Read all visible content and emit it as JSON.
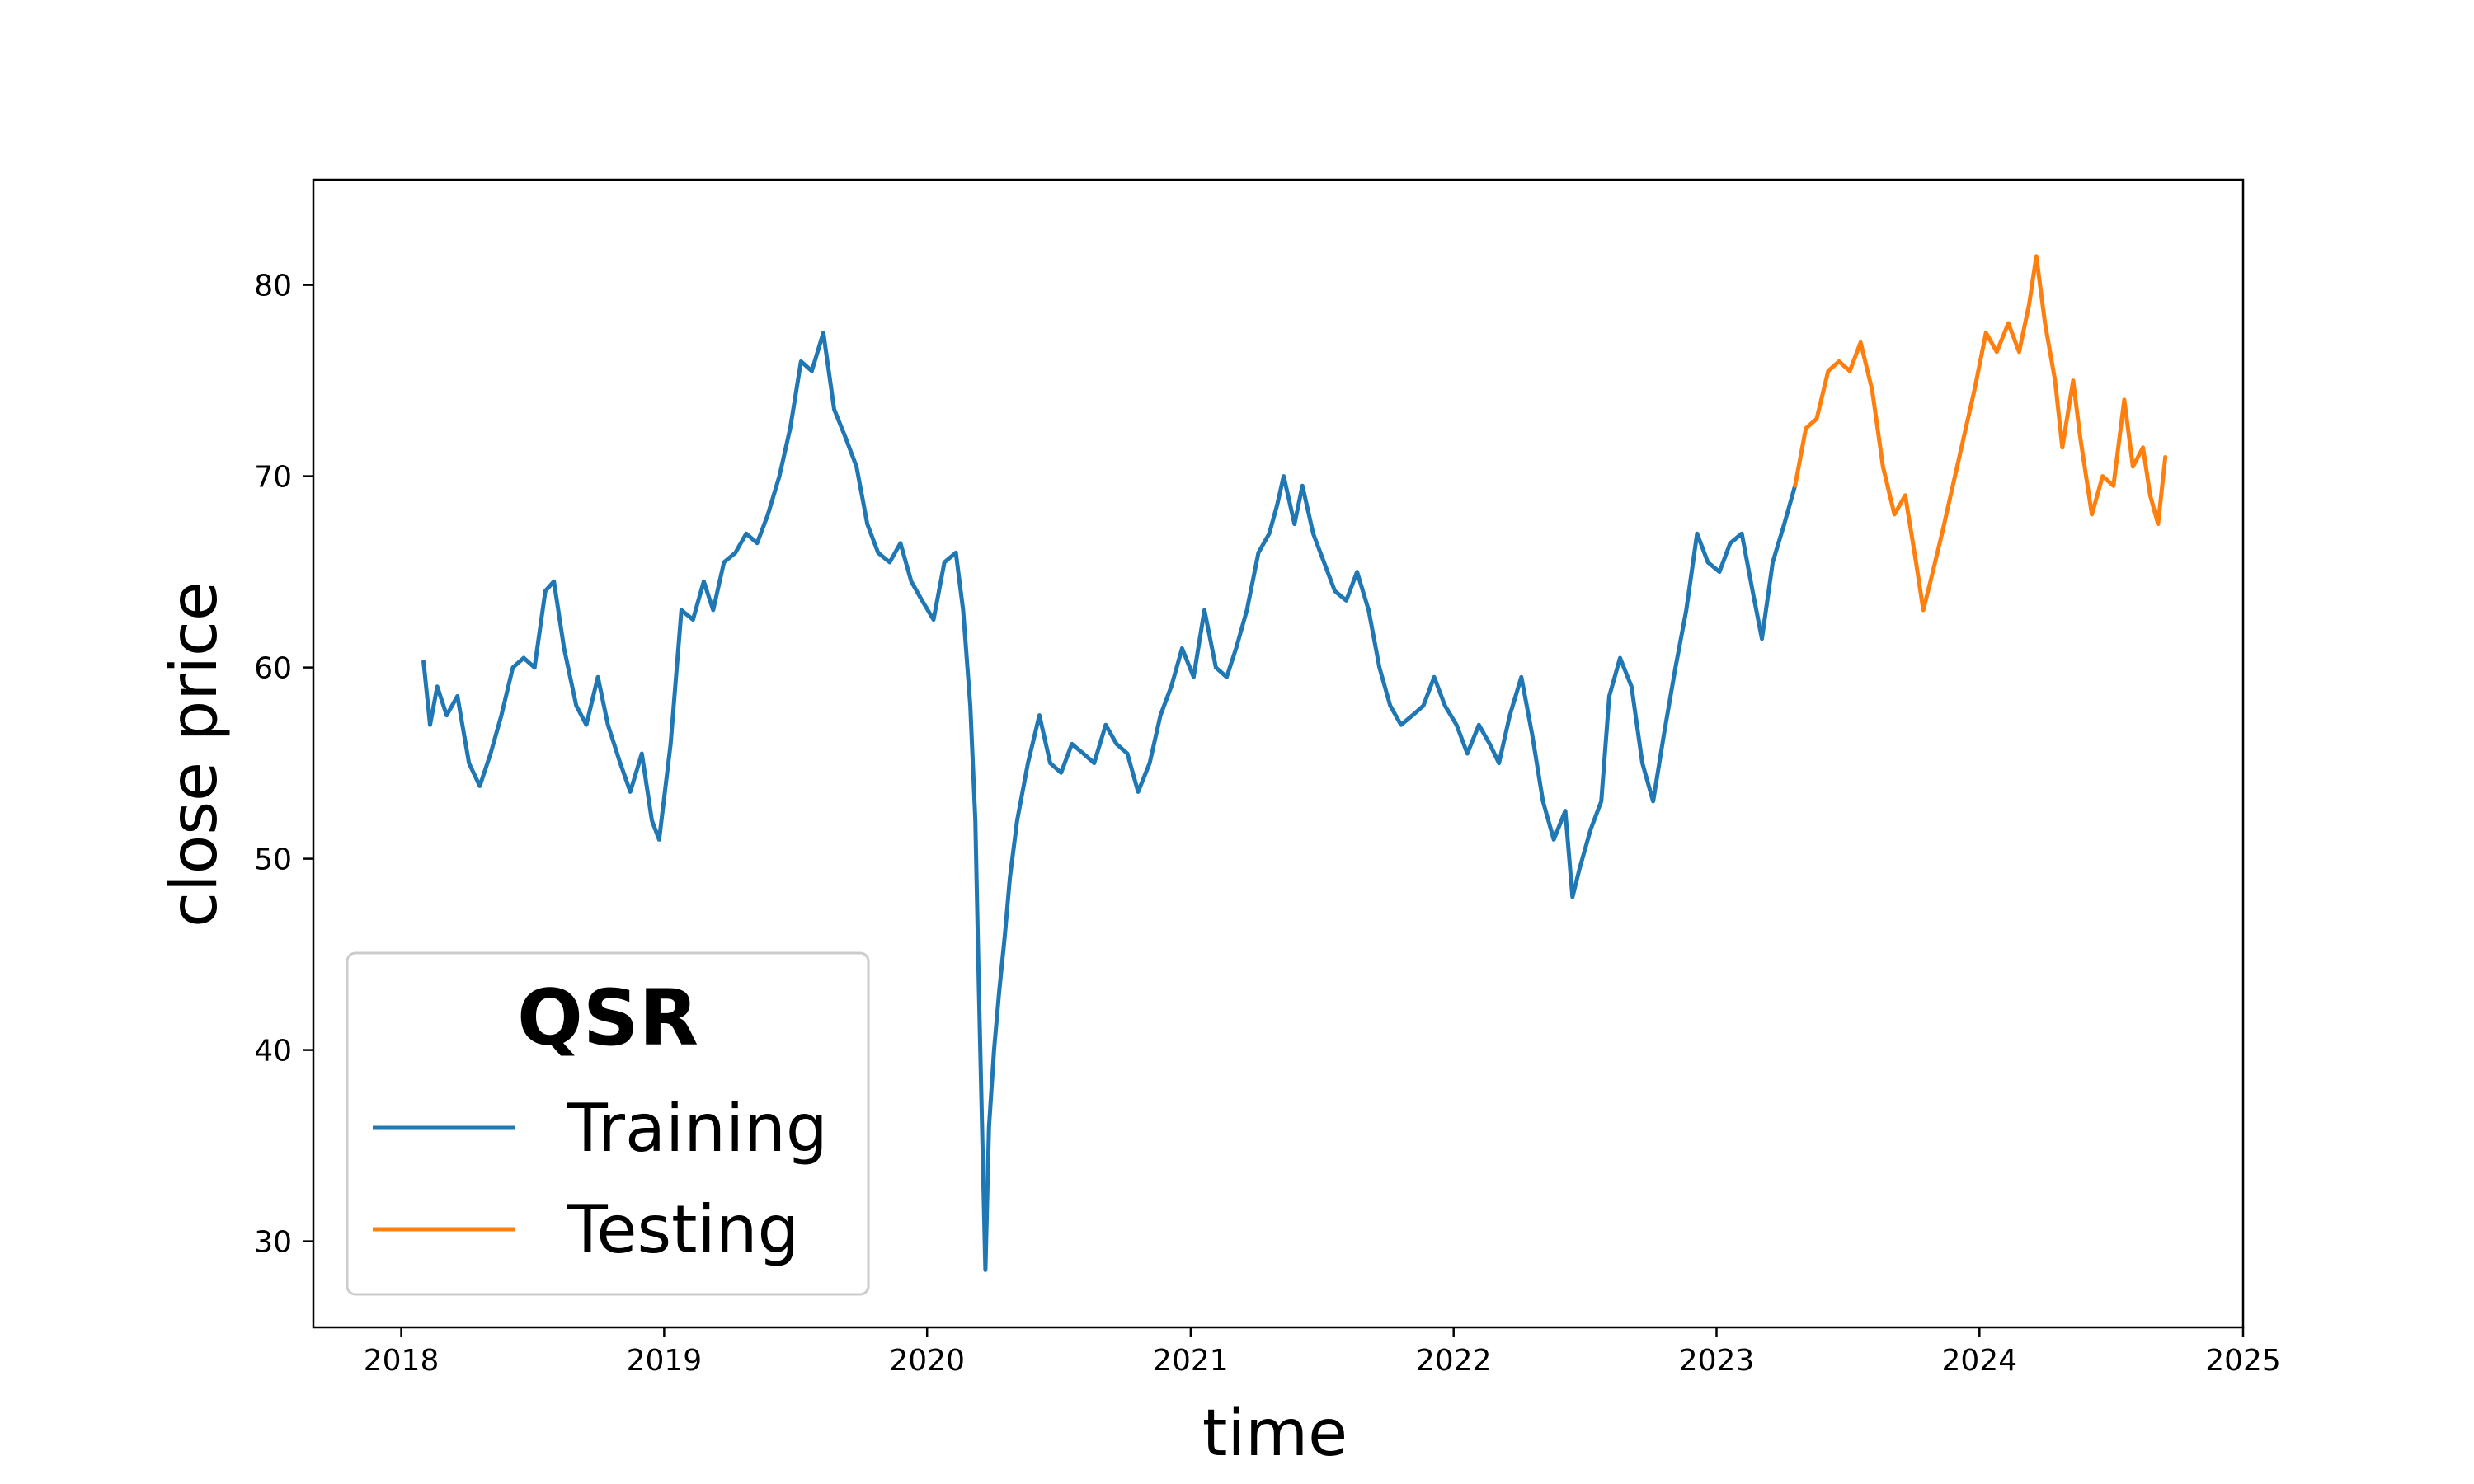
{
  "chart_data": {
    "type": "line",
    "xlabel": "time",
    "ylabel": "close price",
    "xlim": [
      "2017-09-01",
      "2025-01-01"
    ],
    "ylim": [
      25.5,
      85.5
    ],
    "x_ticks": [
      "2018",
      "2019",
      "2020",
      "2021",
      "2022",
      "2023",
      "2024",
      "2025"
    ],
    "y_ticks": [
      30,
      40,
      50,
      60,
      70,
      80
    ],
    "grid": false,
    "legend": {
      "title": "QSR",
      "position": "lower-left"
    },
    "series": [
      {
        "name": "Training",
        "color": "#1f77b4",
        "points": [
          [
            "2018-02-01",
            60.3
          ],
          [
            "2018-02-10",
            57.0
          ],
          [
            "2018-02-20",
            59.0
          ],
          [
            "2018-03-05",
            57.5
          ],
          [
            "2018-03-20",
            58.5
          ],
          [
            "2018-04-05",
            55.0
          ],
          [
            "2018-04-20",
            53.8
          ],
          [
            "2018-05-05",
            55.5
          ],
          [
            "2018-05-20",
            57.5
          ],
          [
            "2018-06-05",
            60.0
          ],
          [
            "2018-06-20",
            60.5
          ],
          [
            "2018-07-05",
            60.0
          ],
          [
            "2018-07-20",
            64.0
          ],
          [
            "2018-08-01",
            64.5
          ],
          [
            "2018-08-15",
            61.0
          ],
          [
            "2018-09-01",
            58.0
          ],
          [
            "2018-09-15",
            57.0
          ],
          [
            "2018-10-01",
            59.5
          ],
          [
            "2018-10-15",
            57.0
          ],
          [
            "2018-11-01",
            55.0
          ],
          [
            "2018-11-15",
            53.5
          ],
          [
            "2018-12-01",
            55.5
          ],
          [
            "2018-12-15",
            52.0
          ],
          [
            "2018-12-25",
            51.0
          ],
          [
            "2019-01-10",
            56.0
          ],
          [
            "2019-01-25",
            63.0
          ],
          [
            "2019-02-10",
            62.5
          ],
          [
            "2019-02-25",
            64.5
          ],
          [
            "2019-03-10",
            63.0
          ],
          [
            "2019-03-25",
            65.5
          ],
          [
            "2019-04-10",
            66.0
          ],
          [
            "2019-04-25",
            67.0
          ],
          [
            "2019-05-10",
            66.5
          ],
          [
            "2019-05-25",
            68.0
          ],
          [
            "2019-06-10",
            70.0
          ],
          [
            "2019-06-25",
            72.5
          ],
          [
            "2019-07-10",
            76.0
          ],
          [
            "2019-07-25",
            75.5
          ],
          [
            "2019-08-10",
            77.5
          ],
          [
            "2019-08-25",
            73.5
          ],
          [
            "2019-09-10",
            72.0
          ],
          [
            "2019-09-25",
            70.5
          ],
          [
            "2019-10-10",
            67.5
          ],
          [
            "2019-10-25",
            66.0
          ],
          [
            "2019-11-10",
            65.5
          ],
          [
            "2019-11-25",
            66.5
          ],
          [
            "2019-12-10",
            64.5
          ],
          [
            "2019-12-25",
            63.5
          ],
          [
            "2020-01-10",
            62.5
          ],
          [
            "2020-01-25",
            65.5
          ],
          [
            "2020-02-10",
            66.0
          ],
          [
            "2020-02-20",
            63.0
          ],
          [
            "2020-03-01",
            58.0
          ],
          [
            "2020-03-08",
            52.0
          ],
          [
            "2020-03-13",
            43.0
          ],
          [
            "2020-03-18",
            35.0
          ],
          [
            "2020-03-22",
            28.5
          ],
          [
            "2020-03-27",
            36.0
          ],
          [
            "2020-04-03",
            40.0
          ],
          [
            "2020-04-10",
            43.0
          ],
          [
            "2020-04-18",
            46.0
          ],
          [
            "2020-04-25",
            49.0
          ],
          [
            "2020-05-05",
            52.0
          ],
          [
            "2020-05-20",
            55.0
          ],
          [
            "2020-06-05",
            57.5
          ],
          [
            "2020-06-20",
            55.0
          ],
          [
            "2020-07-05",
            54.5
          ],
          [
            "2020-07-20",
            56.0
          ],
          [
            "2020-08-05",
            55.5
          ],
          [
            "2020-08-20",
            55.0
          ],
          [
            "2020-09-05",
            57.0
          ],
          [
            "2020-09-20",
            56.0
          ],
          [
            "2020-10-05",
            55.5
          ],
          [
            "2020-10-20",
            53.5
          ],
          [
            "2020-11-05",
            55.0
          ],
          [
            "2020-11-20",
            57.5
          ],
          [
            "2020-12-05",
            59.0
          ],
          [
            "2020-12-20",
            61.0
          ],
          [
            "2021-01-05",
            59.5
          ],
          [
            "2021-01-20",
            63.0
          ],
          [
            "2021-02-05",
            60.0
          ],
          [
            "2021-02-20",
            59.5
          ],
          [
            "2021-03-05",
            61.0
          ],
          [
            "2021-03-20",
            63.0
          ],
          [
            "2021-04-05",
            66.0
          ],
          [
            "2021-04-20",
            67.0
          ],
          [
            "2021-05-01",
            68.5
          ],
          [
            "2021-05-10",
            70.0
          ],
          [
            "2021-05-25",
            67.5
          ],
          [
            "2021-06-05",
            69.5
          ],
          [
            "2021-06-20",
            67.0
          ],
          [
            "2021-07-05",
            65.5
          ],
          [
            "2021-07-20",
            64.0
          ],
          [
            "2021-08-05",
            63.5
          ],
          [
            "2021-08-20",
            65.0
          ],
          [
            "2021-09-05",
            63.0
          ],
          [
            "2021-09-20",
            60.0
          ],
          [
            "2021-10-05",
            58.0
          ],
          [
            "2021-10-20",
            57.0
          ],
          [
            "2021-11-05",
            57.5
          ],
          [
            "2021-11-20",
            58.0
          ],
          [
            "2021-12-05",
            59.5
          ],
          [
            "2021-12-20",
            58.0
          ],
          [
            "2022-01-05",
            57.0
          ],
          [
            "2022-01-20",
            55.5
          ],
          [
            "2022-02-05",
            57.0
          ],
          [
            "2022-02-20",
            56.0
          ],
          [
            "2022-03-05",
            55.0
          ],
          [
            "2022-03-20",
            57.5
          ],
          [
            "2022-04-05",
            59.5
          ],
          [
            "2022-04-20",
            56.5
          ],
          [
            "2022-05-05",
            53.0
          ],
          [
            "2022-05-20",
            51.0
          ],
          [
            "2022-06-05",
            52.5
          ],
          [
            "2022-06-15",
            48.0
          ],
          [
            "2022-06-25",
            49.5
          ],
          [
            "2022-07-10",
            51.5
          ],
          [
            "2022-07-25",
            53.0
          ],
          [
            "2022-08-05",
            58.5
          ],
          [
            "2022-08-20",
            60.5
          ],
          [
            "2022-09-05",
            59.0
          ],
          [
            "2022-09-20",
            55.0
          ],
          [
            "2022-10-05",
            53.0
          ],
          [
            "2022-10-20",
            56.5
          ],
          [
            "2022-11-05",
            60.0
          ],
          [
            "2022-11-20",
            63.0
          ],
          [
            "2022-12-05",
            67.0
          ],
          [
            "2022-12-20",
            65.5
          ],
          [
            "2023-01-05",
            65.0
          ],
          [
            "2023-01-20",
            66.5
          ],
          [
            "2023-02-05",
            67.0
          ],
          [
            "2023-02-20",
            64.0
          ],
          [
            "2023-03-05",
            61.5
          ],
          [
            "2023-03-20",
            65.5
          ],
          [
            "2023-04-05",
            67.5
          ],
          [
            "2023-04-20",
            69.5
          ]
        ]
      },
      {
        "name": "Testing",
        "color": "#ff7f0e",
        "points": [
          [
            "2023-04-20",
            69.5
          ],
          [
            "2023-05-05",
            72.5
          ],
          [
            "2023-05-20",
            73.0
          ],
          [
            "2023-06-05",
            75.5
          ],
          [
            "2023-06-20",
            76.0
          ],
          [
            "2023-07-05",
            75.5
          ],
          [
            "2023-07-20",
            77.0
          ],
          [
            "2023-08-05",
            74.5
          ],
          [
            "2023-08-20",
            70.5
          ],
          [
            "2023-09-05",
            68.0
          ],
          [
            "2023-09-20",
            69.0
          ],
          [
            "2023-10-05",
            65.5
          ],
          [
            "2023-10-15",
            63.0
          ],
          [
            "2023-10-25",
            64.5
          ],
          [
            "2023-11-10",
            67.0
          ],
          [
            "2023-11-25",
            69.5
          ],
          [
            "2023-12-10",
            72.0
          ],
          [
            "2023-12-25",
            74.5
          ],
          [
            "2024-01-10",
            77.5
          ],
          [
            "2024-01-25",
            76.5
          ],
          [
            "2024-02-10",
            78.0
          ],
          [
            "2024-02-25",
            76.5
          ],
          [
            "2024-03-10",
            79.0
          ],
          [
            "2024-03-20",
            81.5
          ],
          [
            "2024-04-01",
            78.0
          ],
          [
            "2024-04-15",
            75.0
          ],
          [
            "2024-04-25",
            71.5
          ],
          [
            "2024-05-10",
            75.0
          ],
          [
            "2024-05-20",
            72.0
          ],
          [
            "2024-06-05",
            68.0
          ],
          [
            "2024-06-20",
            70.0
          ],
          [
            "2024-07-05",
            69.5
          ],
          [
            "2024-07-20",
            74.0
          ],
          [
            "2024-08-01",
            70.5
          ],
          [
            "2024-08-15",
            71.5
          ],
          [
            "2024-08-25",
            69.0
          ],
          [
            "2024-09-05",
            67.5
          ],
          [
            "2024-09-15",
            71.0
          ]
        ]
      }
    ]
  }
}
